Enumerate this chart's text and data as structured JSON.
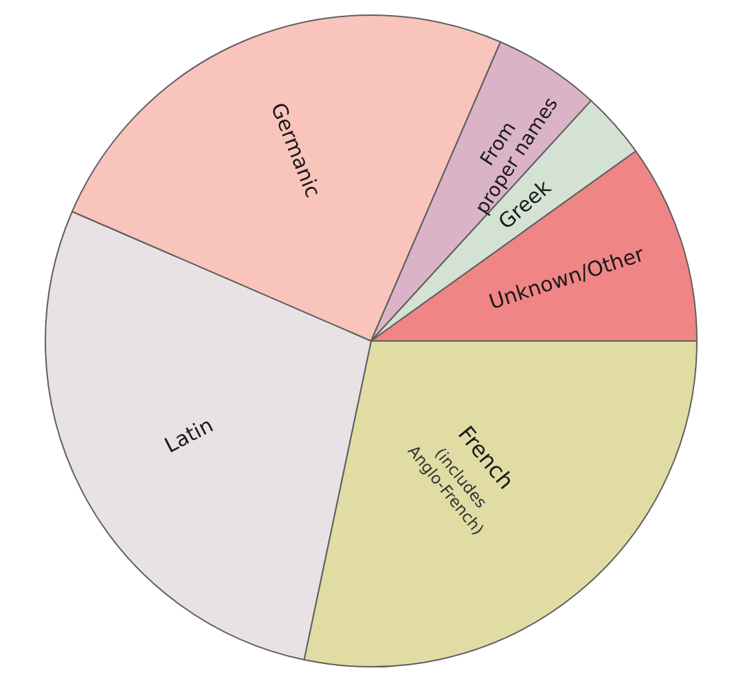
{
  "chart_data": {
    "type": "pie",
    "categories": [
      "French",
      "Latin",
      "Germanic",
      "From\nproper names",
      "Greek",
      "Unknown/Other"
    ],
    "values": [
      28.3,
      28.2,
      25.0,
      5.3,
      3.3,
      9.9
    ],
    "colors": [
      "#e0dca4",
      "#e8e2e4",
      "#f9c4bb",
      "#dbb3c7",
      "#d3e2d3",
      "#f08585"
    ],
    "annotations": [
      {
        "text": "(includes Anglo-French)",
        "x": "French"
      }
    ]
  }
}
